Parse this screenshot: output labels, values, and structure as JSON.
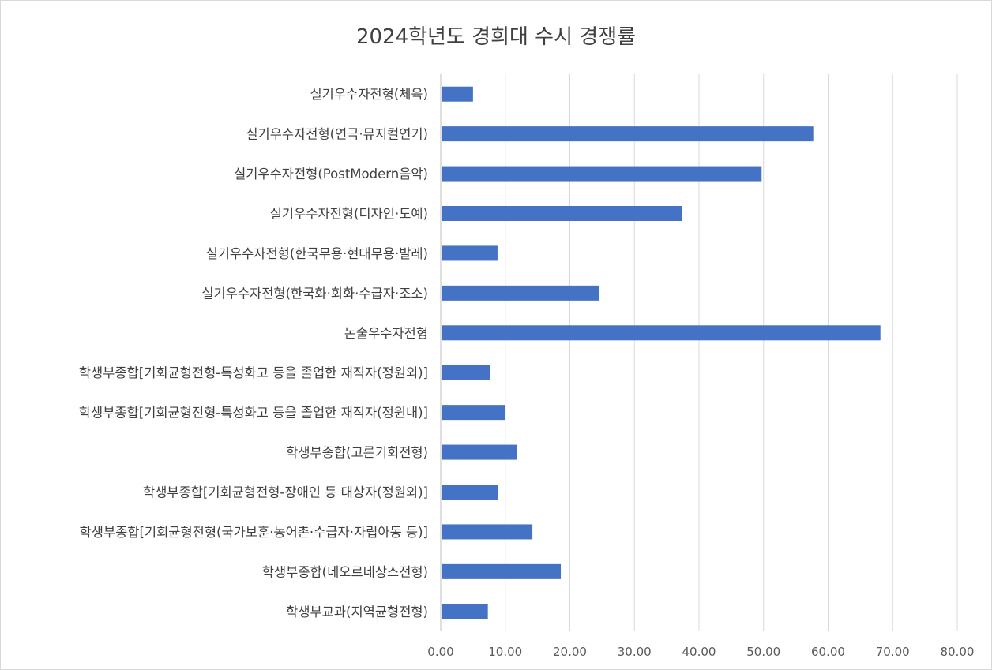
{
  "chart_data": {
    "type": "bar",
    "orientation": "horizontal",
    "title": "2024학년도 경희대 수시 경쟁률",
    "xlabel": "",
    "ylabel": "",
    "categories": [
      "실기우수자전형(체육)",
      "실기우수자전형(연극·뮤지컬연기)",
      "실기우수자전형(PostModern음악)",
      "실기우수자전형(디자인·도예)",
      "실기우수자전형(한국무용·현대무용·발레)",
      "실기우수자전형(한국화·회화·수급자·조소)",
      "논술우수자전형",
      "학생부종합[기회균형전형-특성화고 등을 졸업한 재직자(정원외)]",
      "학생부종합[기회균형전형-특성화고 등을 졸업한 재직자(정원내)]",
      "학생부종합(고른기회전형)",
      "학생부종합[기회균형전형-장애인 등 대상자(정원외)]",
      "학생부종합[기회균형전형(국가보훈·농어촌·수급자·자립아동 등)]",
      "학생부종합(네오르네상스전형)",
      "학생부교과(지역균형전형)"
    ],
    "values": [
      5.0,
      57.7,
      49.7,
      37.4,
      8.8,
      24.5,
      68.1,
      7.6,
      10.0,
      11.8,
      8.9,
      14.2,
      18.6,
      7.3
    ],
    "xlim": [
      0,
      80
    ],
    "xticks": [
      "0.00",
      "10.00",
      "20.00",
      "30.00",
      "40.00",
      "50.00",
      "60.00",
      "70.00",
      "80.00"
    ],
    "grid": true,
    "legend": "none",
    "bar_color": "#4472c4",
    "grid_color": "#d9d9d9"
  }
}
